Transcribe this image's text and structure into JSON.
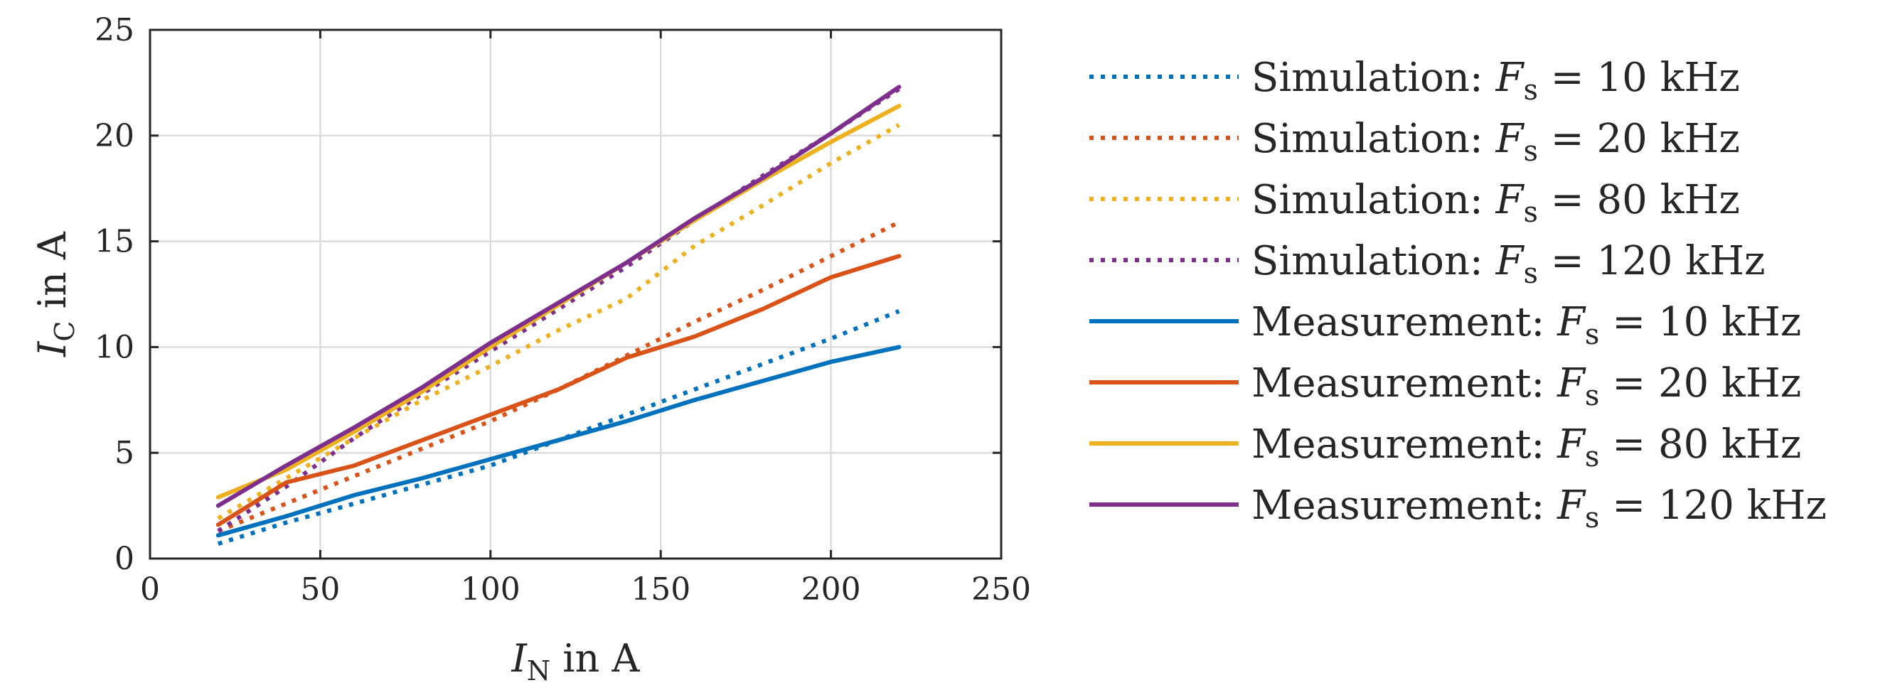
{
  "chart_data": {
    "type": "line",
    "title": "",
    "xlabel": {
      "main": "I",
      "sub": "N",
      "suffix": " in A"
    },
    "ylabel": {
      "main": "I",
      "sub": "C",
      "suffix": " in A"
    },
    "xlim": [
      0,
      250
    ],
    "ylim": [
      0,
      25
    ],
    "xticks": [
      0,
      50,
      100,
      150,
      200,
      250
    ],
    "yticks": [
      0,
      5,
      10,
      15,
      20,
      25
    ],
    "xtick_labels": [
      "0",
      "50",
      "100",
      "150",
      "200",
      "250"
    ],
    "ytick_labels": [
      "0",
      "5",
      "10",
      "15",
      "20",
      "25"
    ],
    "grid": true,
    "legend_position": "outside-right",
    "x": [
      20,
      40,
      60,
      80,
      100,
      120,
      140,
      160,
      180,
      200,
      220
    ],
    "series": [
      {
        "name": "Simulation: F_s = 10 kHz",
        "prefix": "Simulation:",
        "freq": "10 kHz",
        "style": "dotted",
        "color": "#0072BD",
        "values": [
          0.7,
          1.7,
          2.6,
          3.5,
          4.4,
          5.6,
          6.8,
          8.0,
          9.2,
          10.4,
          11.7
        ]
      },
      {
        "name": "Simulation: F_s = 20 kHz",
        "prefix": "Simulation:",
        "freq": "20 kHz",
        "style": "dotted",
        "color": "#D95319",
        "values": [
          1.3,
          2.6,
          3.9,
          5.2,
          6.5,
          8.0,
          9.6,
          11.2,
          12.7,
          14.3,
          15.9
        ]
      },
      {
        "name": "Simulation: F_s = 80 kHz",
        "prefix": "Simulation:",
        "freq": "80 kHz",
        "style": "dotted",
        "color": "#EDB120",
        "values": [
          1.9,
          3.8,
          5.7,
          7.5,
          9.1,
          10.8,
          12.3,
          14.8,
          16.7,
          18.7,
          20.5
        ]
      },
      {
        "name": "Simulation: F_s = 120 kHz",
        "prefix": "Simulation:",
        "freq": "120 kHz",
        "style": "dotted",
        "color": "#7E2F8E",
        "values": [
          1.3,
          3.4,
          5.7,
          7.8,
          9.8,
          11.8,
          13.8,
          16.0,
          18.1,
          20.1,
          22.2
        ]
      },
      {
        "name": "Measurement: F_s = 10 kHz",
        "prefix": "Measurement:",
        "freq": "10 kHz",
        "style": "solid",
        "color": "#0072BD",
        "values": [
          1.1,
          2.0,
          3.0,
          3.8,
          4.7,
          5.6,
          6.5,
          7.5,
          8.4,
          9.3,
          10.0
        ]
      },
      {
        "name": "Measurement: F_s = 20 kHz",
        "prefix": "Measurement:",
        "freq": "20 kHz",
        "style": "solid",
        "color": "#D95319",
        "values": [
          1.6,
          3.6,
          4.4,
          5.6,
          6.8,
          8.0,
          9.5,
          10.5,
          11.8,
          13.3,
          14.3
        ]
      },
      {
        "name": "Measurement: F_s = 80 kHz",
        "prefix": "Measurement:",
        "freq": "80 kHz",
        "style": "solid",
        "color": "#EDB120",
        "values": [
          2.9,
          4.2,
          6.0,
          7.9,
          10.0,
          12.0,
          14.0,
          16.0,
          17.9,
          19.7,
          21.4
        ]
      },
      {
        "name": "Measurement: F_s = 120 kHz",
        "prefix": "Measurement:",
        "freq": "120 kHz",
        "style": "solid",
        "color": "#7E2F8E",
        "values": [
          2.5,
          4.4,
          6.2,
          8.1,
          10.2,
          12.1,
          14.0,
          16.1,
          18.0,
          20.1,
          22.3
        ]
      }
    ],
    "legend_symbol": {
      "main": "F",
      "sub": "s",
      "equals": " = "
    }
  }
}
